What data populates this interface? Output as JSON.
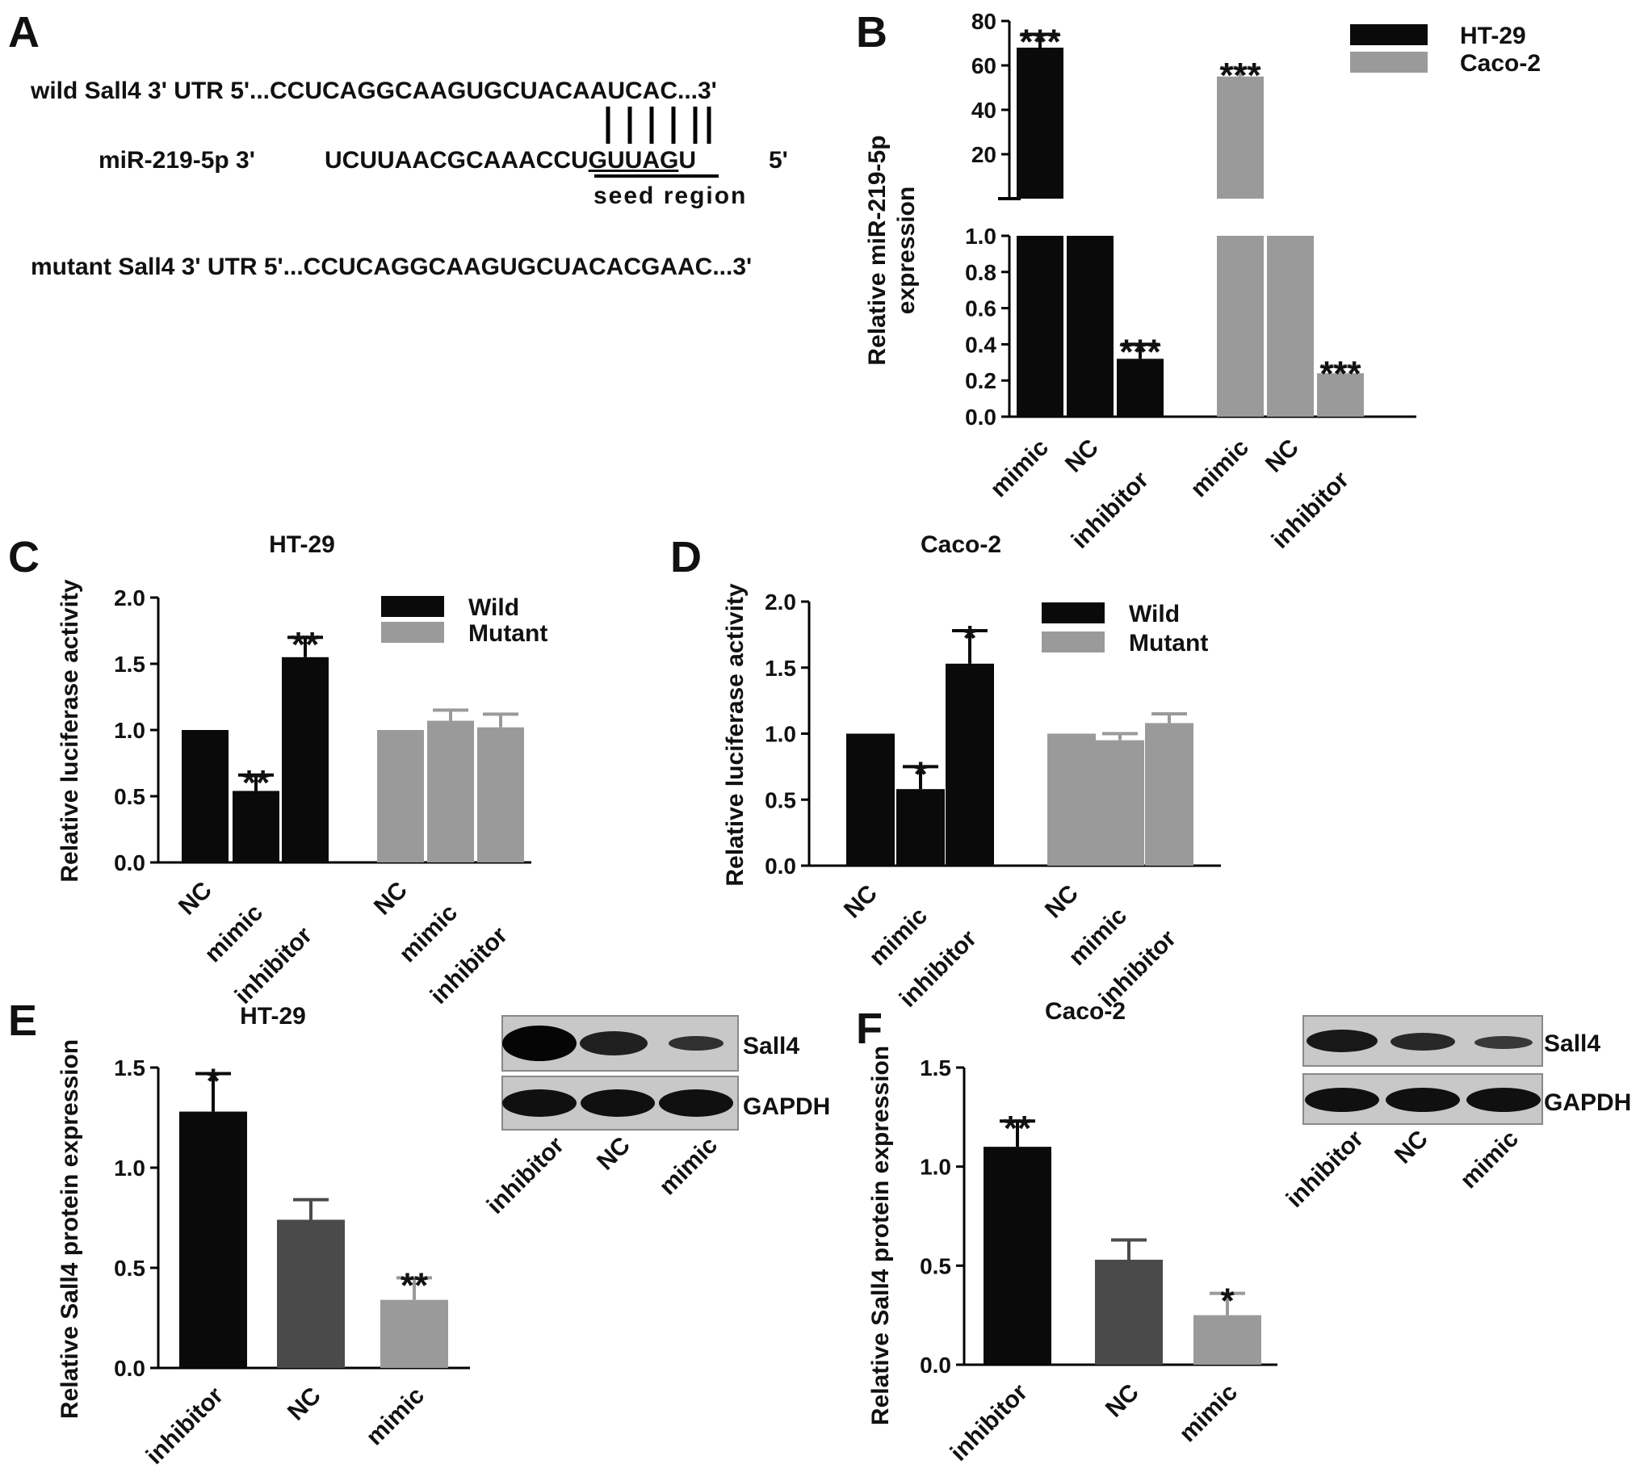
{
  "colors": {
    "black": "#0a0a0a",
    "gray": "#9a9a9a",
    "dark_gray": "#4a4a4a"
  },
  "panel_a": {
    "letter": "A",
    "wild_label": "wild Sall4 3' UTR 5'...CCUCAGGCAAGUGCUACAAUCAC...3'",
    "mir_label": "miR-219-5p 3'",
    "mir_prefix": "UCUUAACGCAAACCU",
    "mir_seed": "GUUAG",
    "mir_suffix": "U",
    "mir_end": "5'",
    "seed_caption": "seed region",
    "mutant_label": "mutant Sall4 3' UTR 5'...CCUCAGGCAAGUGCUACACGAAC...3'"
  },
  "chart_data": [
    {
      "panel": "B",
      "type": "bar",
      "ylabel_line1": "Relative miR-219-5p",
      "ylabel_line2": "expression",
      "categories": [
        "mimic",
        "NC",
        "inhibitor",
        "mimic",
        "NC",
        "inhibitor"
      ],
      "groups": [
        "HT-29",
        "HT-29",
        "HT-29",
        "Caco-2",
        "Caco-2",
        "Caco-2"
      ],
      "values": [
        68,
        1.0,
        0.32,
        55,
        1.0,
        0.24
      ],
      "errors": [
        6,
        0,
        0.08,
        4,
        0,
        0.04
      ],
      "significance": [
        "***",
        "",
        "***",
        "***",
        "",
        "***"
      ],
      "colors": [
        "black",
        "black",
        "black",
        "gray",
        "gray",
        "gray"
      ],
      "y_axis_broken": true,
      "ylim_lower": [
        0,
        1.0
      ],
      "ylim_upper": [
        0,
        80
      ],
      "yticks_lower": [
        "0.0",
        "0.2",
        "0.4",
        "0.6",
        "0.8",
        "1.0"
      ],
      "yticks_upper": [
        "20",
        "40",
        "60",
        "80"
      ],
      "legend": [
        {
          "name": "HT-29",
          "color": "black"
        },
        {
          "name": "Caco-2",
          "color": "gray"
        }
      ],
      "legend_position": "top-right"
    },
    {
      "panel": "C",
      "type": "bar",
      "title": "HT-29",
      "ylabel": "Relative luciferase activity",
      "categories": [
        "NC",
        "mimic",
        "inhibitor",
        "NC",
        "mimic",
        "inhibitor"
      ],
      "values": [
        1.0,
        0.54,
        1.55,
        1.0,
        1.07,
        1.02
      ],
      "errors": [
        0,
        0.12,
        0.15,
        0,
        0.08,
        0.1
      ],
      "significance": [
        "",
        "**",
        "**",
        "",
        "",
        ""
      ],
      "colors": [
        "black",
        "black",
        "black",
        "gray",
        "gray",
        "gray"
      ],
      "ylim": [
        0,
        2.0
      ],
      "yticks": [
        "0.0",
        "0.5",
        "1.0",
        "1.5",
        "2.0"
      ],
      "legend": [
        {
          "name": "Wild",
          "color": "black"
        },
        {
          "name": "Mutant",
          "color": "gray"
        }
      ],
      "legend_position": "top-right"
    },
    {
      "panel": "D",
      "type": "bar",
      "title": "Caco-2",
      "ylabel": "Relative luciferase activity",
      "categories": [
        "NC",
        "mimic",
        "inhibitor",
        "NC",
        "mimic",
        "inhibitor"
      ],
      "values": [
        1.0,
        0.58,
        1.53,
        1.0,
        0.95,
        1.08
      ],
      "errors": [
        0,
        0.17,
        0.25,
        0,
        0.05,
        0.07
      ],
      "significance": [
        "",
        "*",
        "*",
        "",
        "",
        ""
      ],
      "colors": [
        "black",
        "black",
        "black",
        "gray",
        "gray",
        "gray"
      ],
      "ylim": [
        0,
        2.0
      ],
      "yticks": [
        "0.0",
        "0.5",
        "1.0",
        "1.5",
        "2.0"
      ],
      "legend": [
        {
          "name": "Wild",
          "color": "black"
        },
        {
          "name": "Mutant",
          "color": "gray"
        }
      ],
      "legend_position": "top-right"
    },
    {
      "panel": "E",
      "type": "bar",
      "title": "HT-29",
      "ylabel": "Relative Sall4 protein expression",
      "categories": [
        "inhibitor",
        "NC",
        "mimic"
      ],
      "values": [
        1.28,
        0.74,
        0.34
      ],
      "errors": [
        0.19,
        0.1,
        0.11
      ],
      "significance": [
        "*",
        "",
        "**"
      ],
      "colors": [
        "black",
        "dark_gray",
        "gray"
      ],
      "ylim": [
        0,
        1.5
      ],
      "yticks": [
        "0.0",
        "0.5",
        "1.0",
        "1.5"
      ],
      "blot": {
        "bands": [
          "Sall4",
          "GAPDH"
        ],
        "lanes": [
          "inhibitor",
          "NC",
          "mimic"
        ]
      }
    },
    {
      "panel": "F",
      "type": "bar",
      "title": "Caco-2",
      "ylabel": "Relative Sall4 protein expression",
      "categories": [
        "inhibitor",
        "NC",
        "mimic"
      ],
      "values": [
        1.1,
        0.53,
        0.25
      ],
      "errors": [
        0.13,
        0.1,
        0.11
      ],
      "significance": [
        "**",
        "",
        "*"
      ],
      "colors": [
        "black",
        "dark_gray",
        "gray"
      ],
      "ylim": [
        0,
        1.5
      ],
      "yticks": [
        "0.0",
        "0.5",
        "1.0",
        "1.5"
      ],
      "blot": {
        "bands": [
          "Sall4",
          "GAPDH"
        ],
        "lanes": [
          "inhibitor",
          "NC",
          "mimic"
        ]
      }
    }
  ]
}
